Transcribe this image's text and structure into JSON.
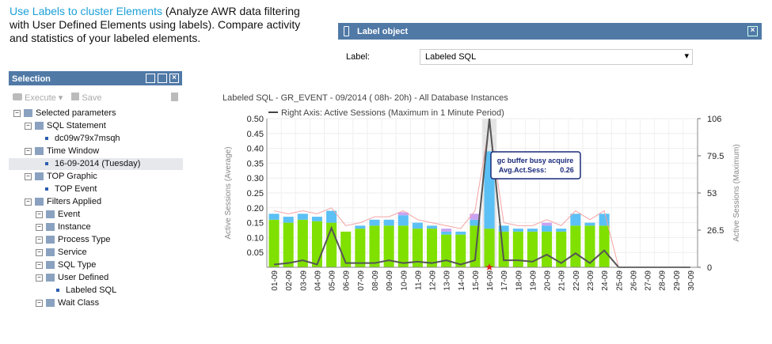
{
  "intro": {
    "link": "Use Labels to cluster Elements",
    "text": " (Analyze AWR data filtering with User Defined Elements using labels). Compare activity and statistics of your labeled elements."
  },
  "dialog": {
    "title": "Label object",
    "field_label": "Label:",
    "field_value": "Labeled SQL"
  },
  "selection": {
    "title": "Selection",
    "toolbar": [
      "Execute",
      "Save"
    ],
    "tree": [
      {
        "label": "Selected parameters",
        "children": [
          {
            "label": "SQL Statement",
            "children": [
              {
                "label": "dc09w79x7msqh"
              }
            ]
          },
          {
            "label": "Time Window",
            "children": [
              {
                "label": "16-09-2014 (Tuesday)",
                "selected": true
              }
            ]
          },
          {
            "label": "TOP Graphic",
            "children": [
              {
                "label": "TOP Event"
              }
            ]
          },
          {
            "label": "Filters Applied",
            "children": [
              {
                "label": "Event",
                "children": []
              },
              {
                "label": "Instance",
                "children": []
              },
              {
                "label": "Process Type",
                "children": []
              },
              {
                "label": "Service",
                "children": []
              },
              {
                "label": "SQL Type",
                "children": []
              },
              {
                "label": "User Defined",
                "children": [
                  {
                    "label": "Labeled SQL"
                  }
                ]
              },
              {
                "label": "Wait Class",
                "children": []
              }
            ]
          }
        ]
      }
    ]
  },
  "chart_data": {
    "type": "bar",
    "stacked": true,
    "title": "Labeled SQL - GR_EVENT - 09/2014 ( 08h- 20h) - All Database Instances",
    "y_label": "Active Sessions (Average)",
    "y2_label": "Active Sessions (Maximum)",
    "categories": [
      "01-09",
      "02-09",
      "03-09",
      "04-09",
      "05-09",
      "06-09",
      "07-09",
      "08-09",
      "09-09",
      "10-09",
      "11-09",
      "12-09",
      "13-09",
      "14-09",
      "15-09",
      "16-09",
      "17-09",
      "18-09",
      "19-09",
      "20-09",
      "21-09",
      "22-09",
      "23-09",
      "24-09",
      "25-09",
      "26-09",
      "27-09",
      "28-09",
      "29-09",
      "30-09"
    ],
    "series": [
      {
        "color": "#80e000",
        "values": [
          0.16,
          0.15,
          0.16,
          0.155,
          0.15,
          0.12,
          0.13,
          0.14,
          0.14,
          0.14,
          0.13,
          0.13,
          0.11,
          0.11,
          0.14,
          0.13,
          0.12,
          0.12,
          0.12,
          0.12,
          0.12,
          0.14,
          0.14,
          0.14,
          0,
          0,
          0,
          0,
          0,
          0
        ]
      },
      {
        "color": "#5bc0f5",
        "values": [
          0.02,
          0.02,
          0.02,
          0.015,
          0.04,
          0,
          0.01,
          0.02,
          0.02,
          0.035,
          0.02,
          0.01,
          0.01,
          0.01,
          0.02,
          0.26,
          0.02,
          0.01,
          0.01,
          0.02,
          0.01,
          0.04,
          0.01,
          0.04,
          0,
          0,
          0,
          0,
          0,
          0
        ]
      },
      {
        "color": "#c9a3f2",
        "values": [
          0,
          0,
          0,
          0,
          0,
          0,
          0,
          0,
          0,
          0.01,
          0,
          0,
          0.01,
          0,
          0.02,
          0,
          0,
          0,
          0,
          0.01,
          0,
          0,
          0,
          0,
          0,
          0,
          0,
          0,
          0,
          0
        ]
      },
      {
        "color": "#f5a3a3",
        "style": "line",
        "values": [
          0.19,
          0.18,
          0.19,
          0.18,
          0.2,
          0.14,
          0.15,
          0.17,
          0.17,
          0.19,
          0.16,
          0.15,
          0.14,
          0.13,
          0.19,
          0.48,
          0.15,
          0.14,
          0.14,
          0.16,
          0.14,
          0.19,
          0.16,
          0.19,
          0,
          0,
          0,
          0,
          0,
          0
        ]
      },
      {
        "name": "Right Axis: Active Sessions (Maximum in 1 Minute Period)",
        "color": "#555555",
        "style": "line",
        "axis": "y2",
        "values": [
          2,
          3,
          5,
          2,
          28,
          3,
          3,
          3,
          5,
          3,
          4,
          3,
          5,
          2,
          5,
          106,
          5,
          5,
          4,
          9,
          3,
          10,
          3,
          12,
          0,
          0,
          0,
          0,
          0,
          0
        ]
      }
    ],
    "tooltip": {
      "title": "gc buffer busy acquire",
      "label": "Avg.Act.Sess:"
    },
    "ylim": [
      0,
      0.5
    ],
    "yticks": [
      0.05,
      {
        "value": 0.1,
        "label": "0.10"
      },
      0.15,
      {
        "value": 0.2,
        "label": "0.20"
      },
      0.25,
      {
        "value": 0.3,
        "label": "0.30"
      },
      0.35,
      {
        "value": 0.4,
        "label": "0.40"
      },
      0.45,
      {
        "value": 0.5,
        "label": "0.50"
      }
    ],
    "y2lim": [
      0,
      106
    ],
    "y2ticks": [
      0,
      26.5,
      53,
      79.5,
      106
    ],
    "grid": true
  }
}
